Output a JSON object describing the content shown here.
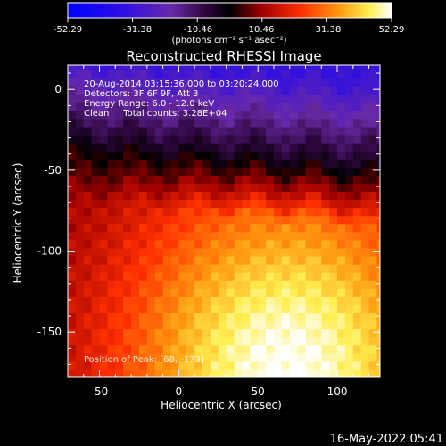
{
  "chart_data": {
    "type": "heatmap",
    "title": "Reconstructed RHESSI Image",
    "xlabel": "Heliocentric X (arcsec)",
    "ylabel": "Heliocentric Y (arcsec)",
    "xlim": [
      -70,
      127
    ],
    "ylim": [
      -178,
      15
    ],
    "x_ticks": [
      -50,
      0,
      50,
      100
    ],
    "y_ticks": [
      0,
      -50,
      -100,
      -150
    ],
    "colorbar": {
      "ticks": [
        "-52.29",
        "-31.38",
        "-10.46",
        "10.46",
        "31.38",
        "52.29"
      ],
      "units_label": "(photons cm⁻² s⁻¹ asec⁻²)",
      "range": [
        -52.29,
        52.29
      ]
    },
    "annotations": [
      "20-Aug-2014 03:15:36.000 to 03:20:24.000",
      "Detectors: 3F 6F 9F, Att 3",
      "Energy Range: 6.0 - 12.0 keV",
      "Clean     Total counts: 3.28E+04"
    ],
    "peak_label": "Position of Peak: [68, -173]",
    "peak": {
      "x": 68,
      "y": -173
    },
    "grid": false,
    "legend": "none"
  },
  "footer": {
    "timestamp": "16-May-2022 05:41"
  },
  "colors": {
    "background": "#000000",
    "text": "#ffffff",
    "colormap": [
      "#0000ff",
      "#5020b0",
      "#000000",
      "#b00000",
      "#ff4000",
      "#ffa020",
      "#ffff60",
      "#ffffff"
    ]
  }
}
